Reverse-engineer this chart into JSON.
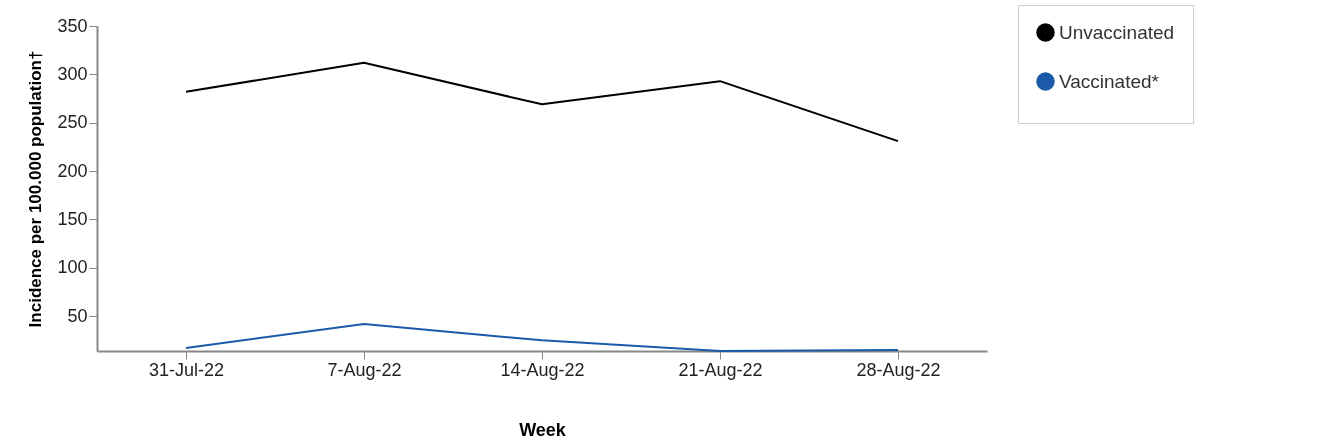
{
  "chart_data": {
    "type": "line",
    "xlabel": "Week",
    "ylabel": "Incidence per 100.000 population†",
    "categories": [
      "31-Jul-22",
      "7-Aug-22",
      "14-Aug-22",
      "21-Aug-22",
      "28-Aug-22"
    ],
    "series": [
      {
        "name": "Unvaccinated",
        "color": "#000000",
        "values": [
          282,
          312,
          269,
          293,
          231
        ]
      },
      {
        "name": "Vaccinated*",
        "color": "#1a5aa8",
        "values": [
          17,
          42,
          25,
          14,
          15
        ]
      }
    ],
    "ylim": [
      14,
      350
    ],
    "yticks": [
      50,
      100,
      150,
      200,
      250,
      300,
      350
    ],
    "grid": false,
    "legend": "top right",
    "line_style": "solid"
  }
}
